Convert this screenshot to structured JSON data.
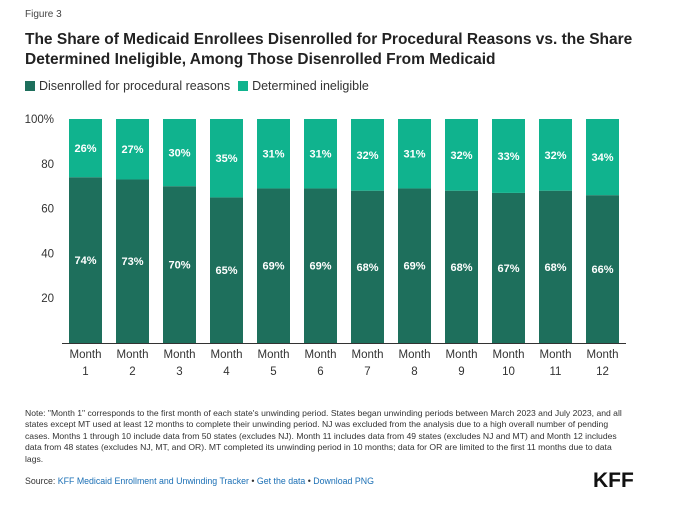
{
  "figure_label": "Figure 3",
  "colors": {
    "procedural": "#1e6f5c",
    "ineligible": "#10b38e",
    "link": "#1a6fb5"
  },
  "legend": {
    "procedural": "Disenrolled for procedural reasons",
    "ineligible": "Determined ineligible"
  },
  "note": "Note: \"Month 1\" corresponds to the first month of each state's unwinding period. States began unwinding periods between March 2023 and July 2023, and all states except MT used at least 12 months to complete their unwinding period. NJ was excluded from the analysis due to a high overall number of pending cases. Months 1 through 10 include data from 50 states (excludes NJ). Month 11 includes data from 49 states (excludes NJ and MT) and Month 12 includes data from 48 states (excludes NJ, MT, and OR). MT completed its unwinding period in 10 months; data for OR are limited to the first 11 months due to data lags.",
  "source": {
    "prefix": "Source: ",
    "link1": "KFF Medicaid Enrollment and Unwinding Tracker",
    "sep1": " • ",
    "link2": "Get the data",
    "sep2": " • ",
    "link3": "Download PNG"
  },
  "logo": "KFF",
  "chart_data": {
    "type": "bar",
    "stacked": true,
    "title": "The Share of Medicaid Enrollees Disenrolled for Procedural Reasons vs. the Share Determined Ineligible, Among Those Disenrolled From Medicaid",
    "categories": [
      "Month 1",
      "Month 2",
      "Month 3",
      "Month 4",
      "Month 5",
      "Month 6",
      "Month 7",
      "Month 8",
      "Month 9",
      "Month 10",
      "Month 11",
      "Month 12"
    ],
    "series": [
      {
        "name": "Disenrolled for procedural reasons",
        "values": [
          74,
          73,
          70,
          65,
          69,
          69,
          68,
          69,
          68,
          67,
          68,
          66
        ]
      },
      {
        "name": "Determined ineligible",
        "values": [
          26,
          27,
          30,
          35,
          31,
          31,
          32,
          31,
          32,
          33,
          32,
          34
        ]
      }
    ],
    "ylim": [
      0,
      100
    ],
    "yticks": [
      "20",
      "40",
      "60",
      "80",
      "100%"
    ],
    "ytick_values": [
      20,
      40,
      60,
      80,
      100
    ],
    "value_suffix": "%",
    "xlabel": "",
    "ylabel": "",
    "legend_position": "top-left",
    "grid": false
  }
}
